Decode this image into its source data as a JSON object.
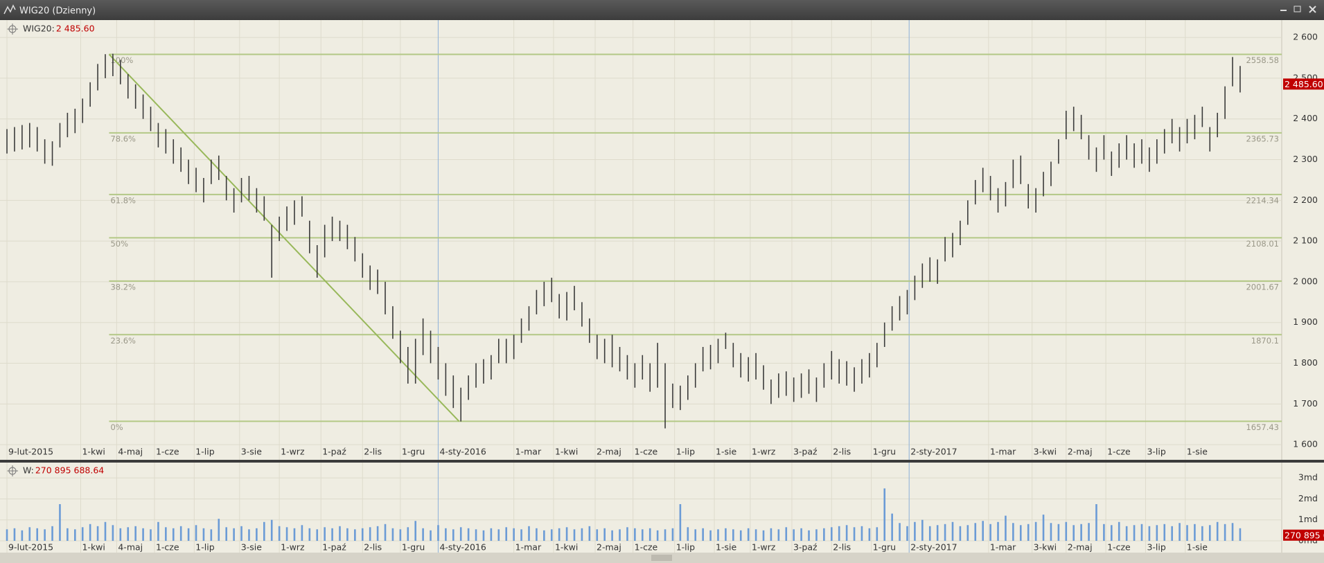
{
  "window_title": "WIG20 (Dzienny)",
  "chart_data": [
    {
      "type": "range-bar",
      "name": "WIG20:",
      "color": "#3a3a3a",
      "last": {
        "value": 2485.6,
        "label": "2 485.60"
      },
      "x": [
        0,
        4,
        8,
        12,
        16,
        20,
        24,
        28,
        32,
        36,
        40,
        44,
        48,
        52,
        56,
        60,
        64,
        68,
        72,
        76,
        80,
        84,
        88,
        92,
        96,
        100,
        104,
        108,
        112,
        116,
        120,
        124,
        128,
        132,
        136,
        140,
        144,
        148,
        152,
        156,
        160,
        164,
        168,
        172,
        176,
        180,
        184,
        188,
        192,
        196,
        200,
        204,
        208,
        212,
        216,
        220,
        224,
        228,
        232,
        236,
        240,
        244,
        248,
        252,
        256,
        260,
        264,
        268,
        272,
        276,
        280,
        284,
        288,
        292,
        296,
        300,
        304,
        308,
        312,
        316,
        320,
        324,
        328,
        332,
        336,
        340,
        344,
        348,
        352,
        356,
        360,
        364,
        368,
        372,
        376,
        380,
        384,
        388,
        392,
        396,
        400,
        404,
        408,
        412,
        416,
        420,
        424,
        428,
        432,
        436,
        440,
        444,
        448,
        452,
        456,
        460,
        464,
        468,
        472,
        476,
        480,
        484,
        488,
        492,
        496,
        500,
        504,
        508,
        512,
        516,
        520,
        524,
        528,
        532,
        536,
        540,
        544,
        548,
        552,
        556,
        560,
        564,
        568,
        572,
        576,
        580,
        584,
        588,
        592,
        596,
        600,
        604,
        608,
        612,
        616,
        620,
        624,
        628,
        632,
        636,
        640,
        644,
        648,
        652
      ],
      "high": [
        2375,
        2380,
        2385,
        2390,
        2380,
        2350,
        2345,
        2390,
        2415,
        2425,
        2450,
        2490,
        2535,
        2559,
        2560,
        2545,
        2510,
        2485,
        2460,
        2430,
        2390,
        2375,
        2350,
        2330,
        2300,
        2280,
        2255,
        2300,
        2310,
        2260,
        2230,
        2255,
        2260,
        2230,
        2210,
        2140,
        2160,
        2185,
        2200,
        2210,
        2150,
        2090,
        2140,
        2160,
        2150,
        2140,
        2110,
        2070,
        2040,
        2030,
        2000,
        1940,
        1880,
        1840,
        1860,
        1910,
        1880,
        1840,
        1800,
        1770,
        1740,
        1770,
        1800,
        1810,
        1820,
        1860,
        1860,
        1870,
        1910,
        1940,
        1980,
        2000,
        2010,
        1970,
        1975,
        1990,
        1950,
        1910,
        1870,
        1860,
        1870,
        1840,
        1820,
        1800,
        1820,
        1800,
        1850,
        1800,
        1750,
        1745,
        1770,
        1800,
        1840,
        1845,
        1860,
        1875,
        1850,
        1825,
        1815,
        1825,
        1795,
        1760,
        1775,
        1780,
        1765,
        1775,
        1785,
        1765,
        1800,
        1830,
        1810,
        1805,
        1790,
        1810,
        1825,
        1850,
        1900,
        1940,
        1965,
        1980,
        2015,
        2045,
        2060,
        2055,
        2110,
        2120,
        2150,
        2200,
        2250,
        2280,
        2260,
        2230,
        2245,
        2300,
        2310,
        2240,
        2230,
        2270,
        2295,
        2350,
        2420,
        2430,
        2410,
        2360,
        2330,
        2360,
        2320,
        2340,
        2360,
        2340,
        2350,
        2330,
        2350,
        2375,
        2400,
        2380,
        2400,
        2410,
        2430,
        2380,
        2415,
        2480,
        2552,
        2530
      ],
      "low": [
        2315,
        2320,
        2325,
        2330,
        2320,
        2290,
        2285,
        2330,
        2355,
        2365,
        2390,
        2430,
        2470,
        2500,
        2505,
        2485,
        2450,
        2425,
        2400,
        2370,
        2330,
        2315,
        2290,
        2270,
        2240,
        2220,
        2195,
        2240,
        2250,
        2200,
        2170,
        2195,
        2200,
        2170,
        2150,
        2010,
        2100,
        2125,
        2140,
        2160,
        2070,
        2010,
        2060,
        2100,
        2100,
        2080,
        2050,
        2010,
        1980,
        1970,
        1920,
        1860,
        1800,
        1750,
        1750,
        1820,
        1800,
        1760,
        1720,
        1690,
        1657,
        1710,
        1740,
        1750,
        1760,
        1800,
        1800,
        1810,
        1850,
        1880,
        1920,
        1940,
        1950,
        1910,
        1905,
        1930,
        1890,
        1850,
        1810,
        1800,
        1790,
        1780,
        1760,
        1740,
        1760,
        1730,
        1740,
        1640,
        1690,
        1685,
        1710,
        1740,
        1780,
        1785,
        1800,
        1835,
        1790,
        1765,
        1755,
        1760,
        1735,
        1700,
        1715,
        1720,
        1705,
        1715,
        1725,
        1705,
        1740,
        1760,
        1750,
        1745,
        1730,
        1750,
        1765,
        1790,
        1840,
        1880,
        1905,
        1920,
        1955,
        1985,
        2000,
        1995,
        2050,
        2060,
        2090,
        2140,
        2190,
        2220,
        2200,
        2170,
        2185,
        2230,
        2240,
        2180,
        2170,
        2210,
        2235,
        2290,
        2350,
        2370,
        2350,
        2300,
        2270,
        2300,
        2260,
        2280,
        2300,
        2280,
        2290,
        2270,
        2290,
        2315,
        2340,
        2320,
        2340,
        2350,
        2380,
        2320,
        2355,
        2400,
        2480,
        2465
      ],
      "xlim": [
        -1,
        674
      ],
      "xticks": [
        {
          "value": 0,
          "label": "9-lut-2015"
        },
        {
          "value": 39,
          "label": "1-kwi"
        },
        {
          "value": 58,
          "label": "4-maj"
        },
        {
          "value": 78,
          "label": "1-cze"
        },
        {
          "value": 99,
          "label": "1-lip"
        },
        {
          "value": 123,
          "label": "3-sie"
        },
        {
          "value": 144,
          "label": "1-wrz"
        },
        {
          "value": 166,
          "label": "1-paź"
        },
        {
          "value": 188,
          "label": "2-lis"
        },
        {
          "value": 208,
          "label": "1-gru"
        },
        {
          "value": 228,
          "label": "4-sty-2016"
        },
        {
          "value": 268,
          "label": "1-mar"
        },
        {
          "value": 289,
          "label": "1-kwi"
        },
        {
          "value": 311,
          "label": "2-maj"
        },
        {
          "value": 331,
          "label": "1-cze"
        },
        {
          "value": 353,
          "label": "1-lip"
        },
        {
          "value": 374,
          "label": "1-sie"
        },
        {
          "value": 393,
          "label": "1-wrz"
        },
        {
          "value": 415,
          "label": "3-paź"
        },
        {
          "value": 436,
          "label": "2-lis"
        },
        {
          "value": 457,
          "label": "1-gru"
        },
        {
          "value": 477,
          "label": "2-sty-2017"
        },
        {
          "value": 519,
          "label": "1-mar"
        },
        {
          "value": 542,
          "label": "3-kwi"
        },
        {
          "value": 560,
          "label": "2-maj"
        },
        {
          "value": 581,
          "label": "1-cze"
        },
        {
          "value": 602,
          "label": "3-lip"
        },
        {
          "value": 623,
          "label": "1-sie"
        }
      ],
      "ylim": [
        1573,
        2624
      ],
      "yticks": [
        {
          "value": 1600,
          "label": "1 600"
        },
        {
          "value": 1700,
          "label": "1 700"
        },
        {
          "value": 1800,
          "label": "1 800"
        },
        {
          "value": 1900,
          "label": "1 900"
        },
        {
          "value": 2000,
          "label": "2 000"
        },
        {
          "value": 2100,
          "label": "2 100"
        },
        {
          "value": 2200,
          "label": "2 200"
        },
        {
          "value": 2300,
          "label": "2 300"
        },
        {
          "value": 2400,
          "label": "2 400"
        },
        {
          "value": 2500,
          "label": "2 500"
        },
        {
          "value": 2600,
          "label": "2 600"
        }
      ],
      "grid": true,
      "separators": [
        228,
        477
      ],
      "fibonacci": {
        "x": 54,
        "color": "#b3c886",
        "levels": [
          2558.58,
          2365.73,
          2214.34,
          2108.01,
          2001.67,
          1870.1,
          1657.43
        ],
        "labels": [
          "100%",
          "78.6%",
          "61.8%",
          "50%",
          "38.2%",
          "23.6%",
          "0%"
        ]
      },
      "trendline": {
        "x": [
          54,
          239
        ],
        "y": [
          2558.58,
          1657.43
        ],
        "color": "#98b85a"
      }
    },
    {
      "type": "bar",
      "name": "W:",
      "color": "#6b9bd6",
      "last": {
        "value": 0.27089568864,
        "label": "270 895 688.64"
      },
      "x": [
        0,
        4,
        8,
        12,
        16,
        20,
        24,
        28,
        32,
        36,
        40,
        44,
        48,
        52,
        56,
        60,
        64,
        68,
        72,
        76,
        80,
        84,
        88,
        92,
        96,
        100,
        104,
        108,
        112,
        116,
        120,
        124,
        128,
        132,
        136,
        140,
        144,
        148,
        152,
        156,
        160,
        164,
        168,
        172,
        176,
        180,
        184,
        188,
        192,
        196,
        200,
        204,
        208,
        212,
        216,
        220,
        224,
        228,
        232,
        236,
        240,
        244,
        248,
        252,
        256,
        260,
        264,
        268,
        272,
        276,
        280,
        284,
        288,
        292,
        296,
        300,
        304,
        308,
        312,
        316,
        320,
        324,
        328,
        332,
        336,
        340,
        344,
        348,
        352,
        356,
        360,
        364,
        368,
        372,
        376,
        380,
        384,
        388,
        392,
        396,
        400,
        404,
        408,
        412,
        416,
        420,
        424,
        428,
        432,
        436,
        440,
        444,
        448,
        452,
        456,
        460,
        464,
        468,
        472,
        476,
        480,
        484,
        488,
        492,
        496,
        500,
        504,
        508,
        512,
        516,
        520,
        524,
        528,
        532,
        536,
        540,
        544,
        548,
        552,
        556,
        560,
        564,
        568,
        572,
        576,
        580,
        584,
        588,
        592,
        596,
        600,
        604,
        608,
        612,
        616,
        620,
        624,
        628,
        632,
        636,
        640,
        644,
        648,
        652
      ],
      "values": [
        0.55,
        0.6,
        0.5,
        0.65,
        0.6,
        0.55,
        0.7,
        1.75,
        0.6,
        0.55,
        0.65,
        0.8,
        0.7,
        0.9,
        0.75,
        0.6,
        0.65,
        0.7,
        0.6,
        0.55,
        0.9,
        0.65,
        0.6,
        0.7,
        0.6,
        0.75,
        0.6,
        0.55,
        1.05,
        0.65,
        0.6,
        0.7,
        0.55,
        0.6,
        0.9,
        1.0,
        0.7,
        0.65,
        0.6,
        0.75,
        0.6,
        0.55,
        0.65,
        0.6,
        0.7,
        0.6,
        0.55,
        0.6,
        0.65,
        0.7,
        0.8,
        0.6,
        0.55,
        0.65,
        0.95,
        0.6,
        0.5,
        0.75,
        0.6,
        0.55,
        0.65,
        0.6,
        0.55,
        0.5,
        0.6,
        0.55,
        0.65,
        0.6,
        0.55,
        0.7,
        0.6,
        0.5,
        0.55,
        0.6,
        0.65,
        0.55,
        0.6,
        0.7,
        0.55,
        0.6,
        0.5,
        0.55,
        0.65,
        0.6,
        0.55,
        0.6,
        0.5,
        0.55,
        0.6,
        1.75,
        0.65,
        0.55,
        0.6,
        0.5,
        0.55,
        0.6,
        0.55,
        0.5,
        0.6,
        0.55,
        0.5,
        0.6,
        0.55,
        0.65,
        0.55,
        0.6,
        0.5,
        0.55,
        0.6,
        0.65,
        0.7,
        0.75,
        0.65,
        0.7,
        0.6,
        0.65,
        2.5,
        1.3,
        0.85,
        0.7,
        0.9,
        1.0,
        0.7,
        0.75,
        0.8,
        0.9,
        0.7,
        0.75,
        0.85,
        0.95,
        0.8,
        0.9,
        1.2,
        0.85,
        0.75,
        0.8,
        0.9,
        1.25,
        0.85,
        0.8,
        0.9,
        0.75,
        0.8,
        0.85,
        1.75,
        0.8,
        0.75,
        0.9,
        0.7,
        0.75,
        0.8,
        0.7,
        0.75,
        0.8,
        0.7,
        0.85,
        0.75,
        0.8,
        0.7,
        0.75,
        0.9,
        0.8,
        0.85,
        0.6
      ],
      "xlim": [
        -1,
        674
      ],
      "xticks": [
        {
          "value": 0,
          "label": "9-lut-2015"
        },
        {
          "value": 39,
          "label": "1-kwi"
        },
        {
          "value": 58,
          "label": "4-maj"
        },
        {
          "value": 78,
          "label": "1-cze"
        },
        {
          "value": 99,
          "label": "1-lip"
        },
        {
          "value": 123,
          "label": "3-sie"
        },
        {
          "value": 144,
          "label": "1-wrz"
        },
        {
          "value": 166,
          "label": "1-paź"
        },
        {
          "value": 188,
          "label": "2-lis"
        },
        {
          "value": 208,
          "label": "1-gru"
        },
        {
          "value": 228,
          "label": "4-sty-2016"
        },
        {
          "value": 268,
          "label": "1-mar"
        },
        {
          "value": 289,
          "label": "1-kwi"
        },
        {
          "value": 311,
          "label": "2-maj"
        },
        {
          "value": 331,
          "label": "1-cze"
        },
        {
          "value": 353,
          "label": "1-lip"
        },
        {
          "value": 374,
          "label": "1-sie"
        },
        {
          "value": 393,
          "label": "1-wrz"
        },
        {
          "value": 415,
          "label": "3-paź"
        },
        {
          "value": 436,
          "label": "2-lis"
        },
        {
          "value": 457,
          "label": "1-gru"
        },
        {
          "value": 477,
          "label": "2-sty-2017"
        },
        {
          "value": 519,
          "label": "1-mar"
        },
        {
          "value": 542,
          "label": "3-kwi"
        },
        {
          "value": 560,
          "label": "2-maj"
        },
        {
          "value": 581,
          "label": "1-cze"
        },
        {
          "value": 602,
          "label": "3-lip"
        },
        {
          "value": 623,
          "label": "1-sie"
        }
      ],
      "ylim": [
        0,
        3.6
      ],
      "yticks": [
        {
          "value": 0,
          "label": "0md"
        },
        {
          "value": 1,
          "label": "1md"
        },
        {
          "value": 2,
          "label": "2md"
        },
        {
          "value": 3,
          "label": "3md"
        }
      ],
      "grid": true,
      "separators": [
        228,
        477
      ]
    }
  ]
}
